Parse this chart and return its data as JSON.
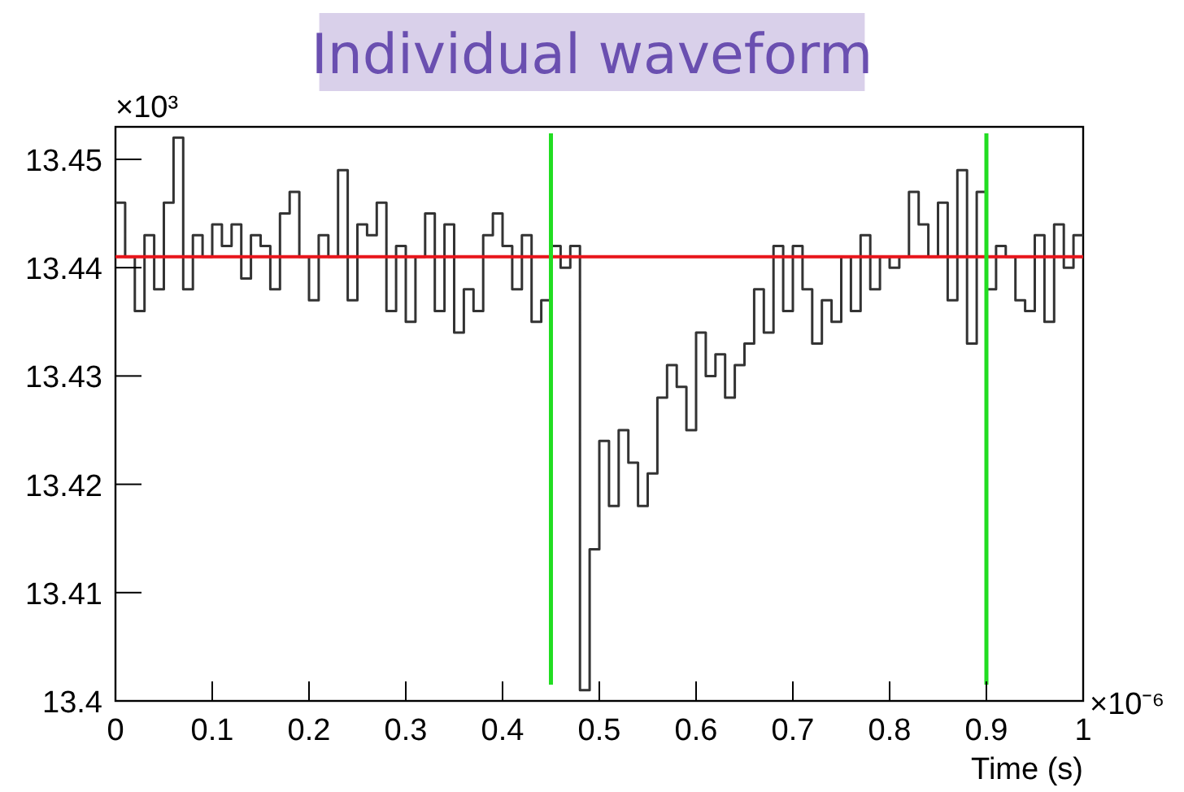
{
  "chart_data": {
    "type": "step",
    "title": "Individual waveform",
    "xlabel": "Time (s)",
    "annotations": [
      "×10³",
      "×10⁻⁶"
    ],
    "x": [
      0,
      0.01,
      0.02,
      0.03,
      0.04,
      0.05,
      0.06,
      0.07,
      0.08,
      0.09,
      0.1,
      0.11,
      0.12,
      0.13,
      0.14,
      0.15,
      0.16,
      0.17,
      0.18,
      0.19,
      0.2,
      0.21,
      0.22,
      0.23,
      0.24,
      0.25,
      0.26,
      0.27,
      0.28,
      0.29,
      0.3,
      0.31,
      0.32,
      0.33,
      0.34,
      0.35,
      0.36,
      0.37,
      0.38,
      0.39,
      0.4,
      0.41,
      0.42,
      0.43,
      0.44,
      0.45,
      0.46,
      0.47,
      0.48,
      0.49,
      0.5,
      0.51,
      0.52,
      0.53,
      0.54,
      0.55,
      0.56,
      0.57,
      0.58,
      0.59,
      0.6,
      0.61,
      0.62,
      0.63,
      0.64,
      0.65,
      0.66,
      0.67,
      0.68,
      0.69,
      0.7,
      0.71,
      0.72,
      0.73,
      0.74,
      0.75,
      0.76,
      0.77,
      0.78,
      0.79,
      0.8,
      0.81,
      0.82,
      0.83,
      0.84,
      0.85,
      0.86,
      0.87,
      0.88,
      0.89,
      0.9,
      0.91,
      0.92,
      0.93,
      0.94,
      0.95,
      0.96,
      0.97,
      0.98,
      0.99,
      1
    ],
    "series": [
      {
        "color": "#333333",
        "values": [
          13.446,
          13.441,
          13.436,
          13.443,
          13.438,
          13.446,
          13.452,
          13.438,
          13.443,
          13.441,
          13.444,
          13.442,
          13.444,
          13.439,
          13.443,
          13.442,
          13.438,
          13.445,
          13.447,
          13.441,
          13.437,
          13.443,
          13.441,
          13.449,
          13.437,
          13.444,
          13.443,
          13.446,
          13.436,
          13.442,
          13.435,
          13.441,
          13.445,
          13.436,
          13.444,
          13.434,
          13.438,
          13.436,
          13.443,
          13.445,
          13.442,
          13.438,
          13.443,
          13.435,
          13.437,
          13.442,
          13.44,
          13.442,
          13.401,
          13.414,
          13.424,
          13.418,
          13.425,
          13.422,
          13.418,
          13.421,
          13.428,
          13.431,
          13.429,
          13.425,
          13.434,
          13.43,
          13.432,
          13.428,
          13.431,
          13.433,
          13.438,
          13.434,
          13.442,
          13.436,
          13.442,
          13.438,
          13.433,
          13.437,
          13.435,
          13.441,
          13.436,
          13.443,
          13.438,
          13.441,
          13.44,
          13.441,
          13.447,
          13.444,
          13.441,
          13.446,
          13.437,
          13.449,
          13.433,
          13.447,
          13.438,
          13.442,
          13.441,
          13.437,
          13.436,
          13.443,
          13.435,
          13.444,
          13.44,
          13.443,
          13.443
        ]
      }
    ],
    "xlim": [
      0,
      1
    ],
    "xticks": [
      0,
      0.1,
      0.2,
      0.3,
      0.4,
      0.5,
      0.6,
      0.7,
      0.8,
      0.9,
      1
    ],
    "ylim": [
      13.4,
      13.453
    ],
    "yticks": [
      13.4,
      13.41,
      13.42,
      13.43,
      13.44,
      13.45
    ],
    "ref_lines": [
      {
        "axis": "y",
        "value": 13.441,
        "color": "#e8151b"
      },
      {
        "axis": "x",
        "value": 0.45,
        "color": "#22dd22"
      },
      {
        "axis": "x",
        "value": 0.9,
        "color": "#22dd22"
      }
    ],
    "grid": false
  }
}
